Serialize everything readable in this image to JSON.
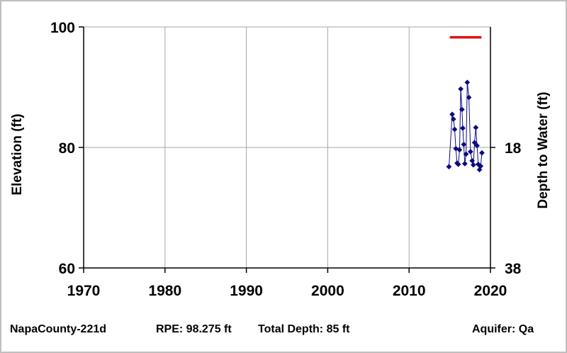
{
  "chart_data": {
    "type": "scatter",
    "title": "",
    "xlabel": "",
    "ylabel": "Elevation (ft)",
    "ylabel_right": "Depth to Water (ft)",
    "xlim": [
      1970,
      2020
    ],
    "ylim": [
      60,
      100
    ],
    "x_ticks": [
      1970,
      1980,
      1990,
      2000,
      2010,
      2020
    ],
    "y_ticks": [
      60,
      80,
      100
    ],
    "y_ticks_right": [
      {
        "elevation": 80,
        "label": "18"
      },
      {
        "elevation": 60,
        "label": "38"
      }
    ],
    "grid": true,
    "rpe_line": {
      "x": [
        2015.0,
        2018.9
      ],
      "y": 98.275,
      "color": "#e01010"
    },
    "series": [
      {
        "color": "#0a0a80",
        "marker": "diamond",
        "points": [
          {
            "x": 2014.9,
            "y": 76.8
          },
          {
            "x": 2015.3,
            "y": 85.5
          },
          {
            "x": 2015.45,
            "y": 84.7
          },
          {
            "x": 2015.6,
            "y": 83.0
          },
          {
            "x": 2015.75,
            "y": 79.8
          },
          {
            "x": 2015.9,
            "y": 77.4
          },
          {
            "x": 2016.05,
            "y": 77.2
          },
          {
            "x": 2016.2,
            "y": 79.6
          },
          {
            "x": 2016.35,
            "y": 89.7
          },
          {
            "x": 2016.5,
            "y": 86.3
          },
          {
            "x": 2016.6,
            "y": 83.2
          },
          {
            "x": 2016.72,
            "y": 80.5
          },
          {
            "x": 2016.85,
            "y": 77.3
          },
          {
            "x": 2017.0,
            "y": 78.9
          },
          {
            "x": 2017.15,
            "y": 90.8
          },
          {
            "x": 2017.35,
            "y": 88.3
          },
          {
            "x": 2017.55,
            "y": 79.3
          },
          {
            "x": 2017.75,
            "y": 77.8
          },
          {
            "x": 2017.9,
            "y": 77.1
          },
          {
            "x": 2018.05,
            "y": 80.8
          },
          {
            "x": 2018.2,
            "y": 83.3
          },
          {
            "x": 2018.35,
            "y": 80.3
          },
          {
            "x": 2018.5,
            "y": 77.2
          },
          {
            "x": 2018.65,
            "y": 76.3
          },
          {
            "x": 2018.8,
            "y": 76.9
          },
          {
            "x": 2018.95,
            "y": 79.1
          }
        ]
      }
    ]
  },
  "footer": {
    "well_id": "NapaCounty-221d",
    "rpe": "RPE: 98.275 ft",
    "total_depth": "Total Depth: 85 ft",
    "aquifer": "Aquifer: Qa"
  }
}
